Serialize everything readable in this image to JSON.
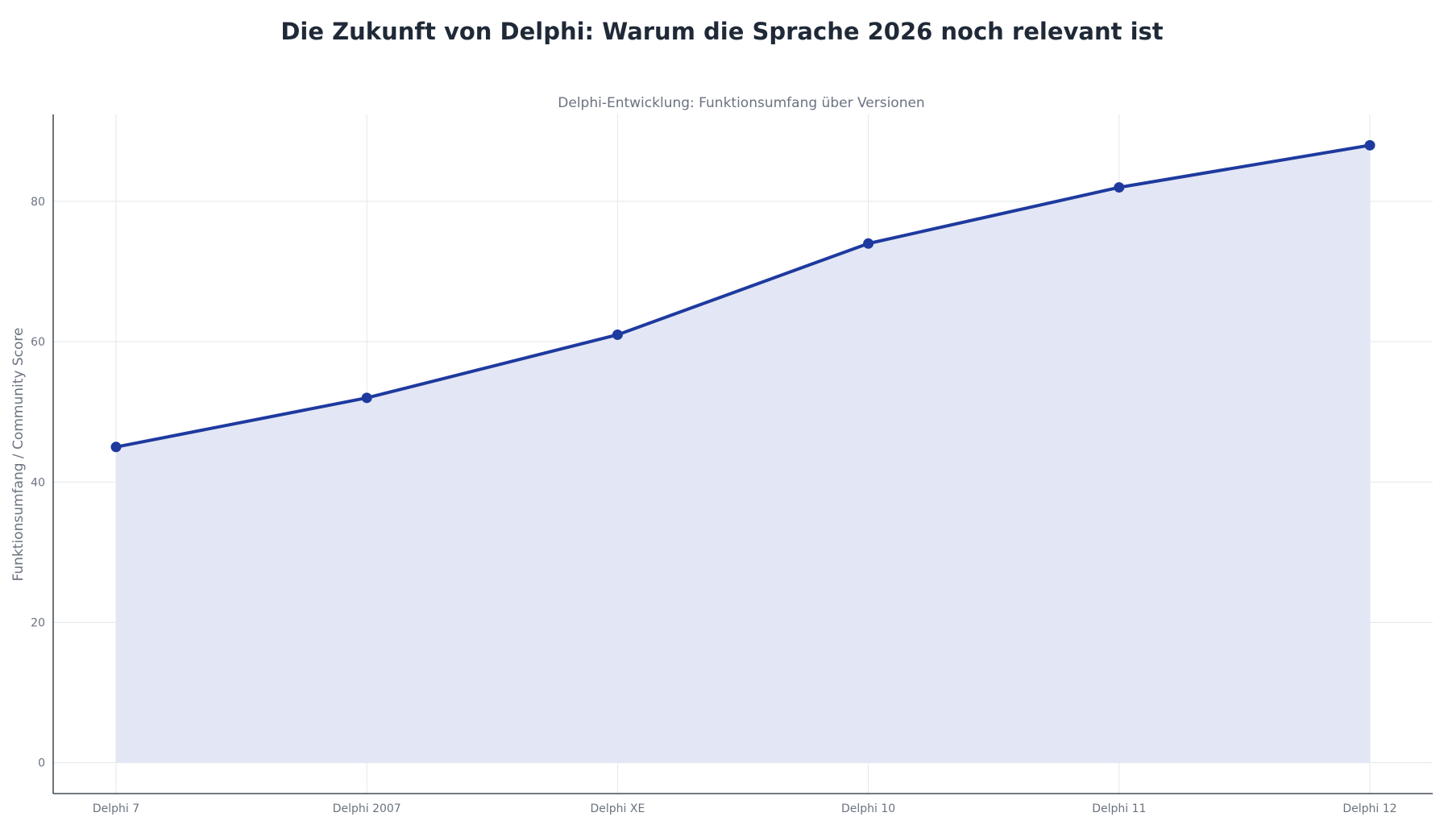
{
  "page": {
    "title": "Die Zukunft von Delphi: Warum die Sprache 2026 noch relevant ist"
  },
  "chart_data": {
    "type": "area",
    "title": "Delphi-Entwicklung: Funktionsumfang über Versionen",
    "xlabel": "",
    "ylabel": "Funktionsumfang / Community Score",
    "categories": [
      "Delphi 7",
      "Delphi 2007",
      "Delphi XE",
      "Delphi 10",
      "Delphi 11",
      "Delphi 12"
    ],
    "series": [
      {
        "values": [
          45,
          52,
          61,
          74,
          82,
          88
        ],
        "color": "#1e3a9f",
        "fill_color": "#e3e7f5"
      }
    ],
    "yticks": [
      0,
      20,
      40,
      60,
      80
    ],
    "ylim": [
      -4.4,
      92.4
    ],
    "grid": true,
    "legend": "none"
  }
}
